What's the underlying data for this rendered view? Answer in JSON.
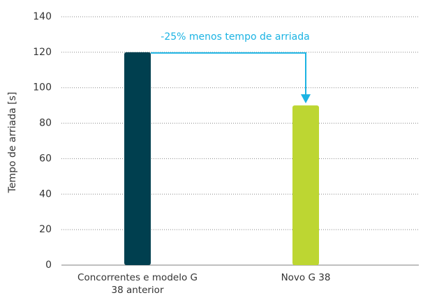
{
  "chart_data": {
    "type": "bar",
    "categories": [
      "Concorrentes e modelo G 38 anterior",
      "Novo G 38"
    ],
    "values": [
      120,
      90
    ],
    "colors": [
      "#003f4f",
      "#bdd632"
    ],
    "y_label": "Tempo de arriada [s]",
    "annotation": "-25% menos tempo de arriada",
    "annotation_color": "#1bb3e3",
    "ylim": [
      0,
      140
    ],
    "yticks": [
      0,
      20,
      40,
      60,
      80,
      100,
      120,
      140
    ],
    "grid": true
  }
}
